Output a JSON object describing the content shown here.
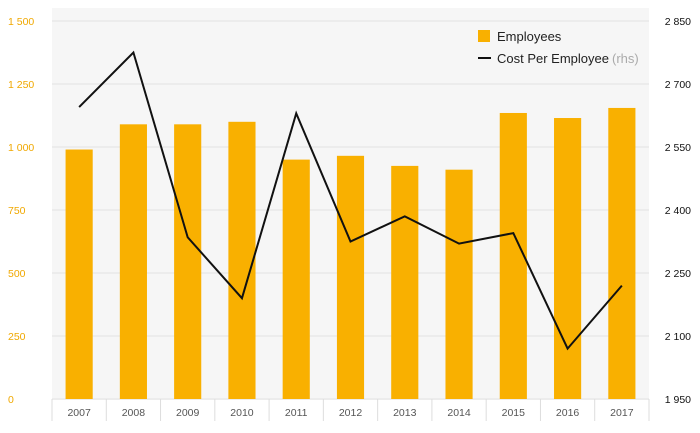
{
  "chart_data": {
    "type": "bar",
    "categories": [
      "2007",
      "2008",
      "2009",
      "2010",
      "2011",
      "2012",
      "2013",
      "2014",
      "2015",
      "2016",
      "2017"
    ],
    "series": [
      {
        "name": "Employees",
        "type": "bar",
        "axis": "left",
        "color": "#f9b000",
        "values": [
          990,
          1090,
          1090,
          1100,
          950,
          965,
          925,
          910,
          1135,
          1115,
          1155
        ]
      },
      {
        "name": "Cost Per Employee",
        "type": "line",
        "axis": "right",
        "color": "#111111",
        "values": [
          2645,
          2775,
          2335,
          2190,
          2630,
          2325,
          2385,
          2320,
          2345,
          2070,
          2220
        ]
      }
    ],
    "y_left": {
      "ticks": [
        "0",
        "250",
        "500",
        "750",
        "1 000",
        "1 250",
        "1 500"
      ],
      "lim": [
        0,
        1500
      ]
    },
    "y_right": {
      "ticks": [
        "1 950",
        "2 100",
        "2 250",
        "2 400",
        "2 550",
        "2 700",
        "2 850"
      ],
      "lim": [
        1950,
        2850
      ]
    },
    "grid": true,
    "legend_position": "top-right"
  },
  "legend": {
    "employees": "Employees",
    "cost": "Cost Per Employee",
    "cost_note": "(rhs)"
  }
}
